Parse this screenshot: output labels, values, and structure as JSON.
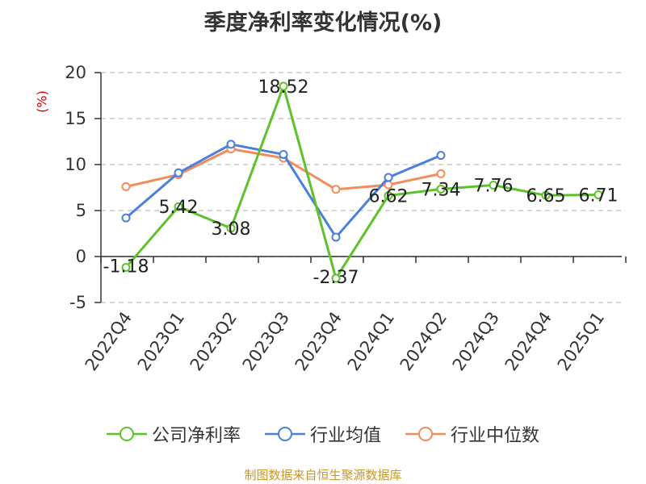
{
  "chart_data": {
    "type": "line",
    "title": "季度净利率变化情况(%)",
    "ylabel": "(%)",
    "xlabel": "",
    "categories": [
      "2022Q4",
      "2023Q1",
      "2023Q2",
      "2023Q3",
      "2023Q4",
      "2024Q1",
      "2024Q2",
      "2024Q3",
      "2024Q4",
      "2025Q1"
    ],
    "ylim": [
      -5,
      20
    ],
    "yticks": [
      -5,
      0,
      5,
      10,
      15,
      20
    ],
    "grid": "horizontal dashed",
    "legend_position": "bottom",
    "series": [
      {
        "name": "公司净利率",
        "color": "#5cc22a",
        "values": [
          -1.18,
          5.42,
          3.08,
          18.52,
          -2.37,
          6.62,
          7.34,
          7.76,
          6.65,
          6.71
        ],
        "labels": [
          "-1.18",
          "5.42",
          "3.08",
          "18.52",
          "-2.37",
          "6.62",
          "7.34",
          "7.76",
          "6.65",
          "6.71"
        ]
      },
      {
        "name": "行业均值",
        "color": "#4a7fdc",
        "values": [
          4.2,
          9.1,
          12.2,
          11.1,
          2.1,
          8.6,
          11.0,
          null,
          null,
          null
        ]
      },
      {
        "name": "行业中位数",
        "color": "#f28c5a",
        "values": [
          7.6,
          8.9,
          11.7,
          10.7,
          7.3,
          7.8,
          9.0,
          null,
          null,
          null
        ]
      }
    ]
  },
  "source_note": "制图数据来自恒生聚源数据库"
}
